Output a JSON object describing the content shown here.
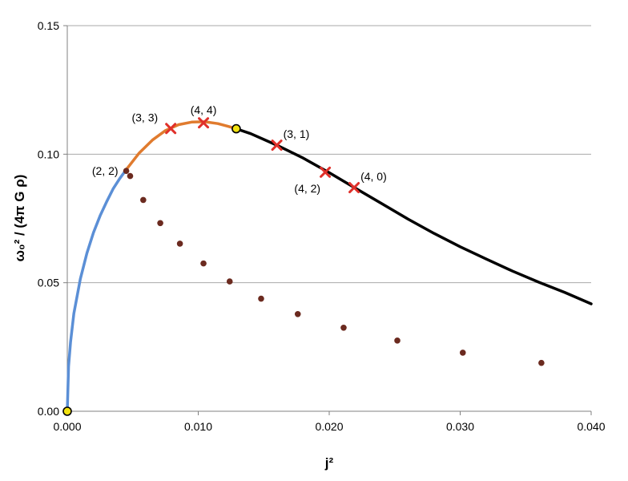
{
  "chart_data": {
    "type": "scatter",
    "xlabel": "j²",
    "ylabel": "ω₀² / (4π G ρ)",
    "xlim": [
      0,
      0.04
    ],
    "ylim": [
      0,
      0.15
    ],
    "x_ticks": [
      "0.000",
      "0.010",
      "0.020",
      "0.030",
      "0.040"
    ],
    "y_ticks": [
      "0.00",
      "0.05",
      "0.10",
      "0.15"
    ],
    "horizontal_grid": true,
    "vertical_grid": false,
    "series": [
      {
        "style": "line",
        "color": "#5b8fd6",
        "x": [
          0,
          0.0001,
          0.00025,
          0.0005,
          0.001,
          0.0015,
          0.002,
          0.0025,
          0.003,
          0.0035,
          0.004,
          0.0045
        ],
        "y": [
          0,
          0.0175,
          0.027,
          0.038,
          0.0515,
          0.0615,
          0.0695,
          0.076,
          0.0815,
          0.0865,
          0.0905,
          0.094
        ]
      },
      {
        "style": "line",
        "color": "#e07b2e",
        "x": [
          0.0045,
          0.0055,
          0.0065,
          0.0075,
          0.0085,
          0.0095,
          0.0105,
          0.0115,
          0.0123,
          0.0129
        ],
        "y": [
          0.094,
          0.1005,
          0.1055,
          0.1092,
          0.1115,
          0.1125,
          0.1126,
          0.1119,
          0.1108,
          0.1099
        ]
      },
      {
        "style": "line",
        "color": "#000000",
        "x": [
          0.0129,
          0.014,
          0.016,
          0.018,
          0.02,
          0.022,
          0.024,
          0.026,
          0.028,
          0.03,
          0.032,
          0.034,
          0.036,
          0.038,
          0.04
        ],
        "y": [
          0.1099,
          0.108,
          0.1035,
          0.0985,
          0.0928,
          0.0868,
          0.0808,
          0.0748,
          0.0692,
          0.064,
          0.0592,
          0.0545,
          0.0502,
          0.0462,
          0.0418
        ]
      },
      {
        "style": "dots",
        "color": "#6b2a1f",
        "x": [
          0.0045,
          0.0048,
          0.0058,
          0.0071,
          0.0086,
          0.0104,
          0.0124,
          0.0148,
          0.0176,
          0.0211,
          0.0252,
          0.0302,
          0.0362
        ],
        "y": [
          0.0935,
          0.0915,
          0.0822,
          0.0732,
          0.0652,
          0.0575,
          0.0505,
          0.0438,
          0.0378,
          0.0325,
          0.0275,
          0.0228,
          0.0188
        ]
      },
      {
        "style": "yellow-points",
        "color": "#f2e20f",
        "x": [
          0,
          0.0129
        ],
        "y": [
          0,
          0.1099
        ]
      }
    ],
    "labelled_modes": [
      {
        "label": "(2, 2)",
        "x": 0.0045,
        "y": 0.0935,
        "marker": "dot",
        "anchor": "left"
      },
      {
        "label": "(3, 3)",
        "x": 0.0079,
        "y": 0.11,
        "marker": "x",
        "anchor": "upper-left"
      },
      {
        "label": "(4, 4)",
        "x": 0.0104,
        "y": 0.1122,
        "marker": "x",
        "anchor": "above"
      },
      {
        "label": "(3, 1)",
        "x": 0.016,
        "y": 0.1035,
        "marker": "x",
        "anchor": "upper-right"
      },
      {
        "label": "(4, 2)",
        "x": 0.0197,
        "y": 0.093,
        "marker": "x",
        "anchor": "lower-left"
      },
      {
        "label": "(4, 0)",
        "x": 0.0219,
        "y": 0.087,
        "marker": "x",
        "anchor": "upper-right"
      }
    ],
    "colors": {
      "cross": "#e0302a",
      "grid": "#a9a9a9",
      "axis": "#808080"
    }
  }
}
